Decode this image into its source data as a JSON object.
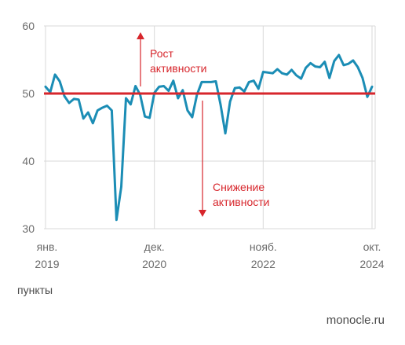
{
  "chart_data": {
    "type": "line",
    "ylim": [
      30,
      60
    ],
    "y_ticks": [
      30,
      40,
      50,
      60
    ],
    "reference_line": 50,
    "x_ticks": [
      {
        "line1": "янв.",
        "line2": "2019",
        "index": 0
      },
      {
        "line1": "дек.",
        "line2": "2020",
        "index": 23
      },
      {
        "line1": "нояб.",
        "line2": "2022",
        "index": 46
      },
      {
        "line1": "окт.",
        "line2": "2024",
        "index": 69
      }
    ],
    "values": [
      51.0,
      50.2,
      52.8,
      51.8,
      49.6,
      48.6,
      49.2,
      49.1,
      46.3,
      47.2,
      45.6,
      47.5,
      47.9,
      48.2,
      47.5,
      31.3,
      36.2,
      49.3,
      48.4,
      51.1,
      49.8,
      46.6,
      46.4,
      50.1,
      51.0,
      51.1,
      50.4,
      51.9,
      49.3,
      50.5,
      47.5,
      46.5,
      49.8,
      51.7,
      51.7,
      51.7,
      51.8,
      48.3,
      44.1,
      48.8,
      50.8,
      50.9,
      50.3,
      51.7,
      51.9,
      50.7,
      53.2,
      53.1,
      53.0,
      53.6,
      53.0,
      52.8,
      53.5,
      52.7,
      52.2,
      53.8,
      54.5,
      54.0,
      53.9,
      54.7,
      52.3,
      54.8,
      55.7,
      54.2,
      54.4,
      54.9,
      53.9,
      52.3,
      49.5,
      51.0
    ],
    "line_color": "#1b8db5",
    "reference_color": "#d7262c",
    "annotations": {
      "up": [
        "Рост",
        "активности"
      ],
      "down": [
        "Снижение",
        "активности"
      ]
    }
  },
  "unit_label": "пункты",
  "brand": "monocle.ru"
}
